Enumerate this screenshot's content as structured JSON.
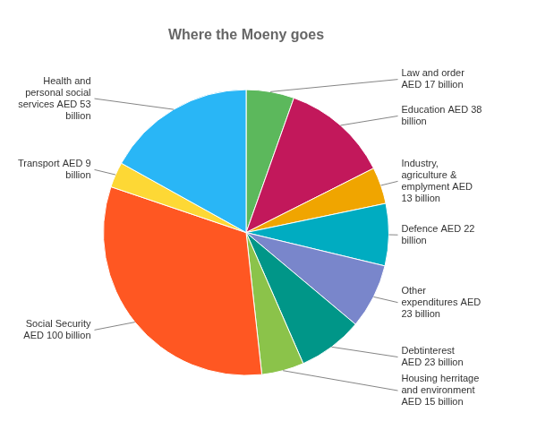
{
  "chart_data": {
    "type": "pie",
    "title": "Where the Moeny goes",
    "categories": [
      "Law and order\nAED 17 billion",
      "Education AED 38\nbillion",
      "Industry,\nagriculture &\nemplyment AED\n13 billion",
      "Defence AED 22\nbillion",
      "Other\nexpenditures AED\n23 billion",
      "Debtinterest\nAED 23 billion",
      "Housing herritage\nand environment\nAED 15 billion",
      "Social Security\nAED 100 billion",
      "Transport AED 9\nbillion",
      "Health and\npersonal social\nservices AED 53\nbillion"
    ],
    "values": [
      17,
      38,
      13,
      22,
      23,
      23,
      15,
      100,
      9,
      53
    ],
    "colors": [
      "#5CB85C",
      "#C2185B",
      "#F0A500",
      "#00ACC1",
      "#7986CB",
      "#009688",
      "#8BC34A",
      "#FF5722",
      "#FDD835",
      "#29B6F6"
    ]
  }
}
